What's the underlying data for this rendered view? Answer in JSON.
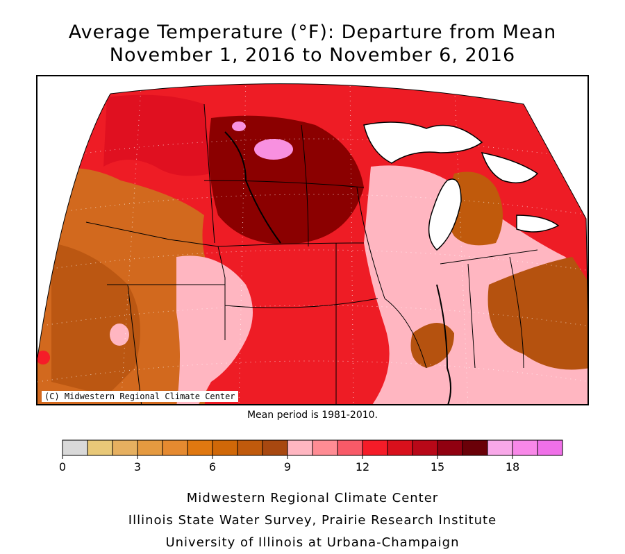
{
  "title": {
    "line1": "Average Temperature (°F): Departure from Mean",
    "line2": "November 1, 2016 to November 6, 2016"
  },
  "map": {
    "copyright": "(C) Midwestern Regional Climate Center",
    "regions": [
      {
        "name": "west-plains-low",
        "fill": "#d2691e"
      },
      {
        "name": "northern-plains-high",
        "fill": "#8b0000"
      },
      {
        "name": "central-plains",
        "fill": "#ee1c25"
      },
      {
        "name": "southeast-pink",
        "fill": "#ffb6c1"
      },
      {
        "name": "ohio-valley-low",
        "fill": "#b5520f"
      },
      {
        "name": "michigan-low",
        "fill": "#c05a0c"
      },
      {
        "name": "hotspot-magenta",
        "fill": "#f890e0"
      }
    ]
  },
  "mean_note": "Mean period is 1981-2010.",
  "legend": {
    "bins": [
      {
        "color": "#d9d9d9"
      },
      {
        "color": "#e8c878"
      },
      {
        "color": "#e6b060"
      },
      {
        "color": "#e59a40"
      },
      {
        "color": "#e58a30"
      },
      {
        "color": "#e07810"
      },
      {
        "color": "#d06808"
      },
      {
        "color": "#c05a0c"
      },
      {
        "color": "#a84810"
      },
      {
        "color": "#ffb6c1"
      },
      {
        "color": "#ff8c94"
      },
      {
        "color": "#f85a68"
      },
      {
        "color": "#f51c28"
      },
      {
        "color": "#d8101c"
      },
      {
        "color": "#b80818"
      },
      {
        "color": "#900010"
      },
      {
        "color": "#6a0008"
      },
      {
        "color": "#f8a8e8"
      },
      {
        "color": "#f888e8"
      },
      {
        "color": "#f070e8"
      }
    ],
    "tick_labels": [
      {
        "value": 0,
        "label": "0"
      },
      {
        "value": 3,
        "label": "3"
      },
      {
        "value": 6,
        "label": "6"
      },
      {
        "value": 9,
        "label": "9"
      },
      {
        "value": 12,
        "label": "12"
      },
      {
        "value": 15,
        "label": "15"
      },
      {
        "value": 18,
        "label": "18"
      }
    ],
    "range": [
      0,
      20
    ]
  },
  "footer": {
    "line1": "Midwestern Regional Climate Center",
    "line2": "Illinois State Water Survey, Prairie Research Institute",
    "line3": "University of Illinois at Urbana-Champaign"
  }
}
